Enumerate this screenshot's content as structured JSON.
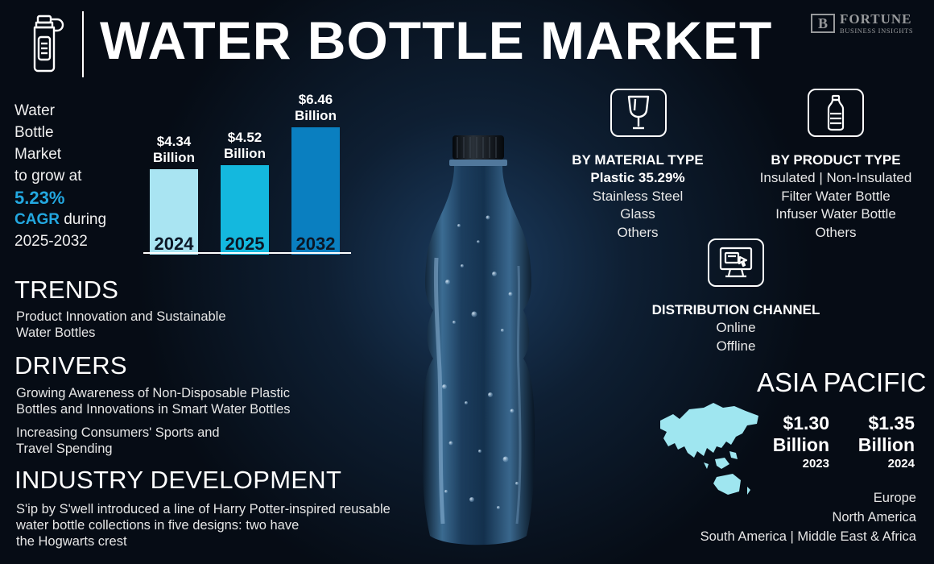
{
  "header": {
    "title": "WATER BOTTLE MARKET",
    "brand_name": "FORTUNE",
    "brand_sub": "BUSINESS INSIGHTS",
    "brand_mark": "B"
  },
  "intro": {
    "line1": "Water",
    "line2": "Bottle",
    "line3": "Market",
    "line4": "to grow at",
    "cagr": "5.23%",
    "cagr_label": "CAGR",
    "during": " during",
    "period": "2025-2032"
  },
  "chart_data": {
    "type": "bar",
    "categories": [
      "2024",
      "2025",
      "2032"
    ],
    "values": [
      4.34,
      4.52,
      6.46
    ],
    "data_labels": [
      {
        "amount": "$4.34",
        "unit": "Billion"
      },
      {
        "amount": "$4.52",
        "unit": "Billion"
      },
      {
        "amount": "$6.46",
        "unit": "Billion"
      }
    ],
    "colors": [
      "#a9e4f2",
      "#14b8de",
      "#0a7fc0"
    ]
  },
  "trends": {
    "heading": "TRENDS",
    "text": [
      "Product Innovation and Sustainable",
      "Water Bottles"
    ]
  },
  "drivers": {
    "heading": "DRIVERS",
    "item1": [
      "Growing Awareness of Non-Disposable Plastic",
      "Bottles and Innovations in Smart Water Bottles"
    ],
    "item2": [
      "Increasing Consumers' Sports and",
      "Travel Spending"
    ]
  },
  "industry": {
    "heading": "INDUSTRY DEVELOPMENT",
    "text": [
      "S'ip by S'well introduced a line of Harry Potter-inspired reusable",
      "water bottle collections in five designs: two have",
      "the Hogwarts crest"
    ]
  },
  "material": {
    "icon": "glass-icon",
    "title": "BY MATERIAL TYPE",
    "highlight": "Plastic 35.29%",
    "items": [
      "Stainless Steel",
      "Glass",
      "Others"
    ]
  },
  "product": {
    "icon": "bottle-icon",
    "title": "BY PRODUCT TYPE",
    "items": [
      "Insulated  |  Non-Insulated",
      "Filter Water Bottle",
      "Infuser Water Bottle",
      "Others"
    ]
  },
  "distribution": {
    "icon": "computer-icon",
    "title": "DISTRIBUTION CHANNEL",
    "items": [
      "Online",
      "Offline"
    ]
  },
  "asia_pacific": {
    "title": "ASIA PACIFIC",
    "values": [
      {
        "amount": "$1.30",
        "unit": "Billion",
        "year": "2023"
      },
      {
        "amount": "$1.35",
        "unit": "Billion",
        "year": "2024"
      }
    ],
    "map_color": "#9fe6f0"
  },
  "regions": [
    "Europe",
    "North America",
    "South America  |  Middle East & Africa"
  ]
}
